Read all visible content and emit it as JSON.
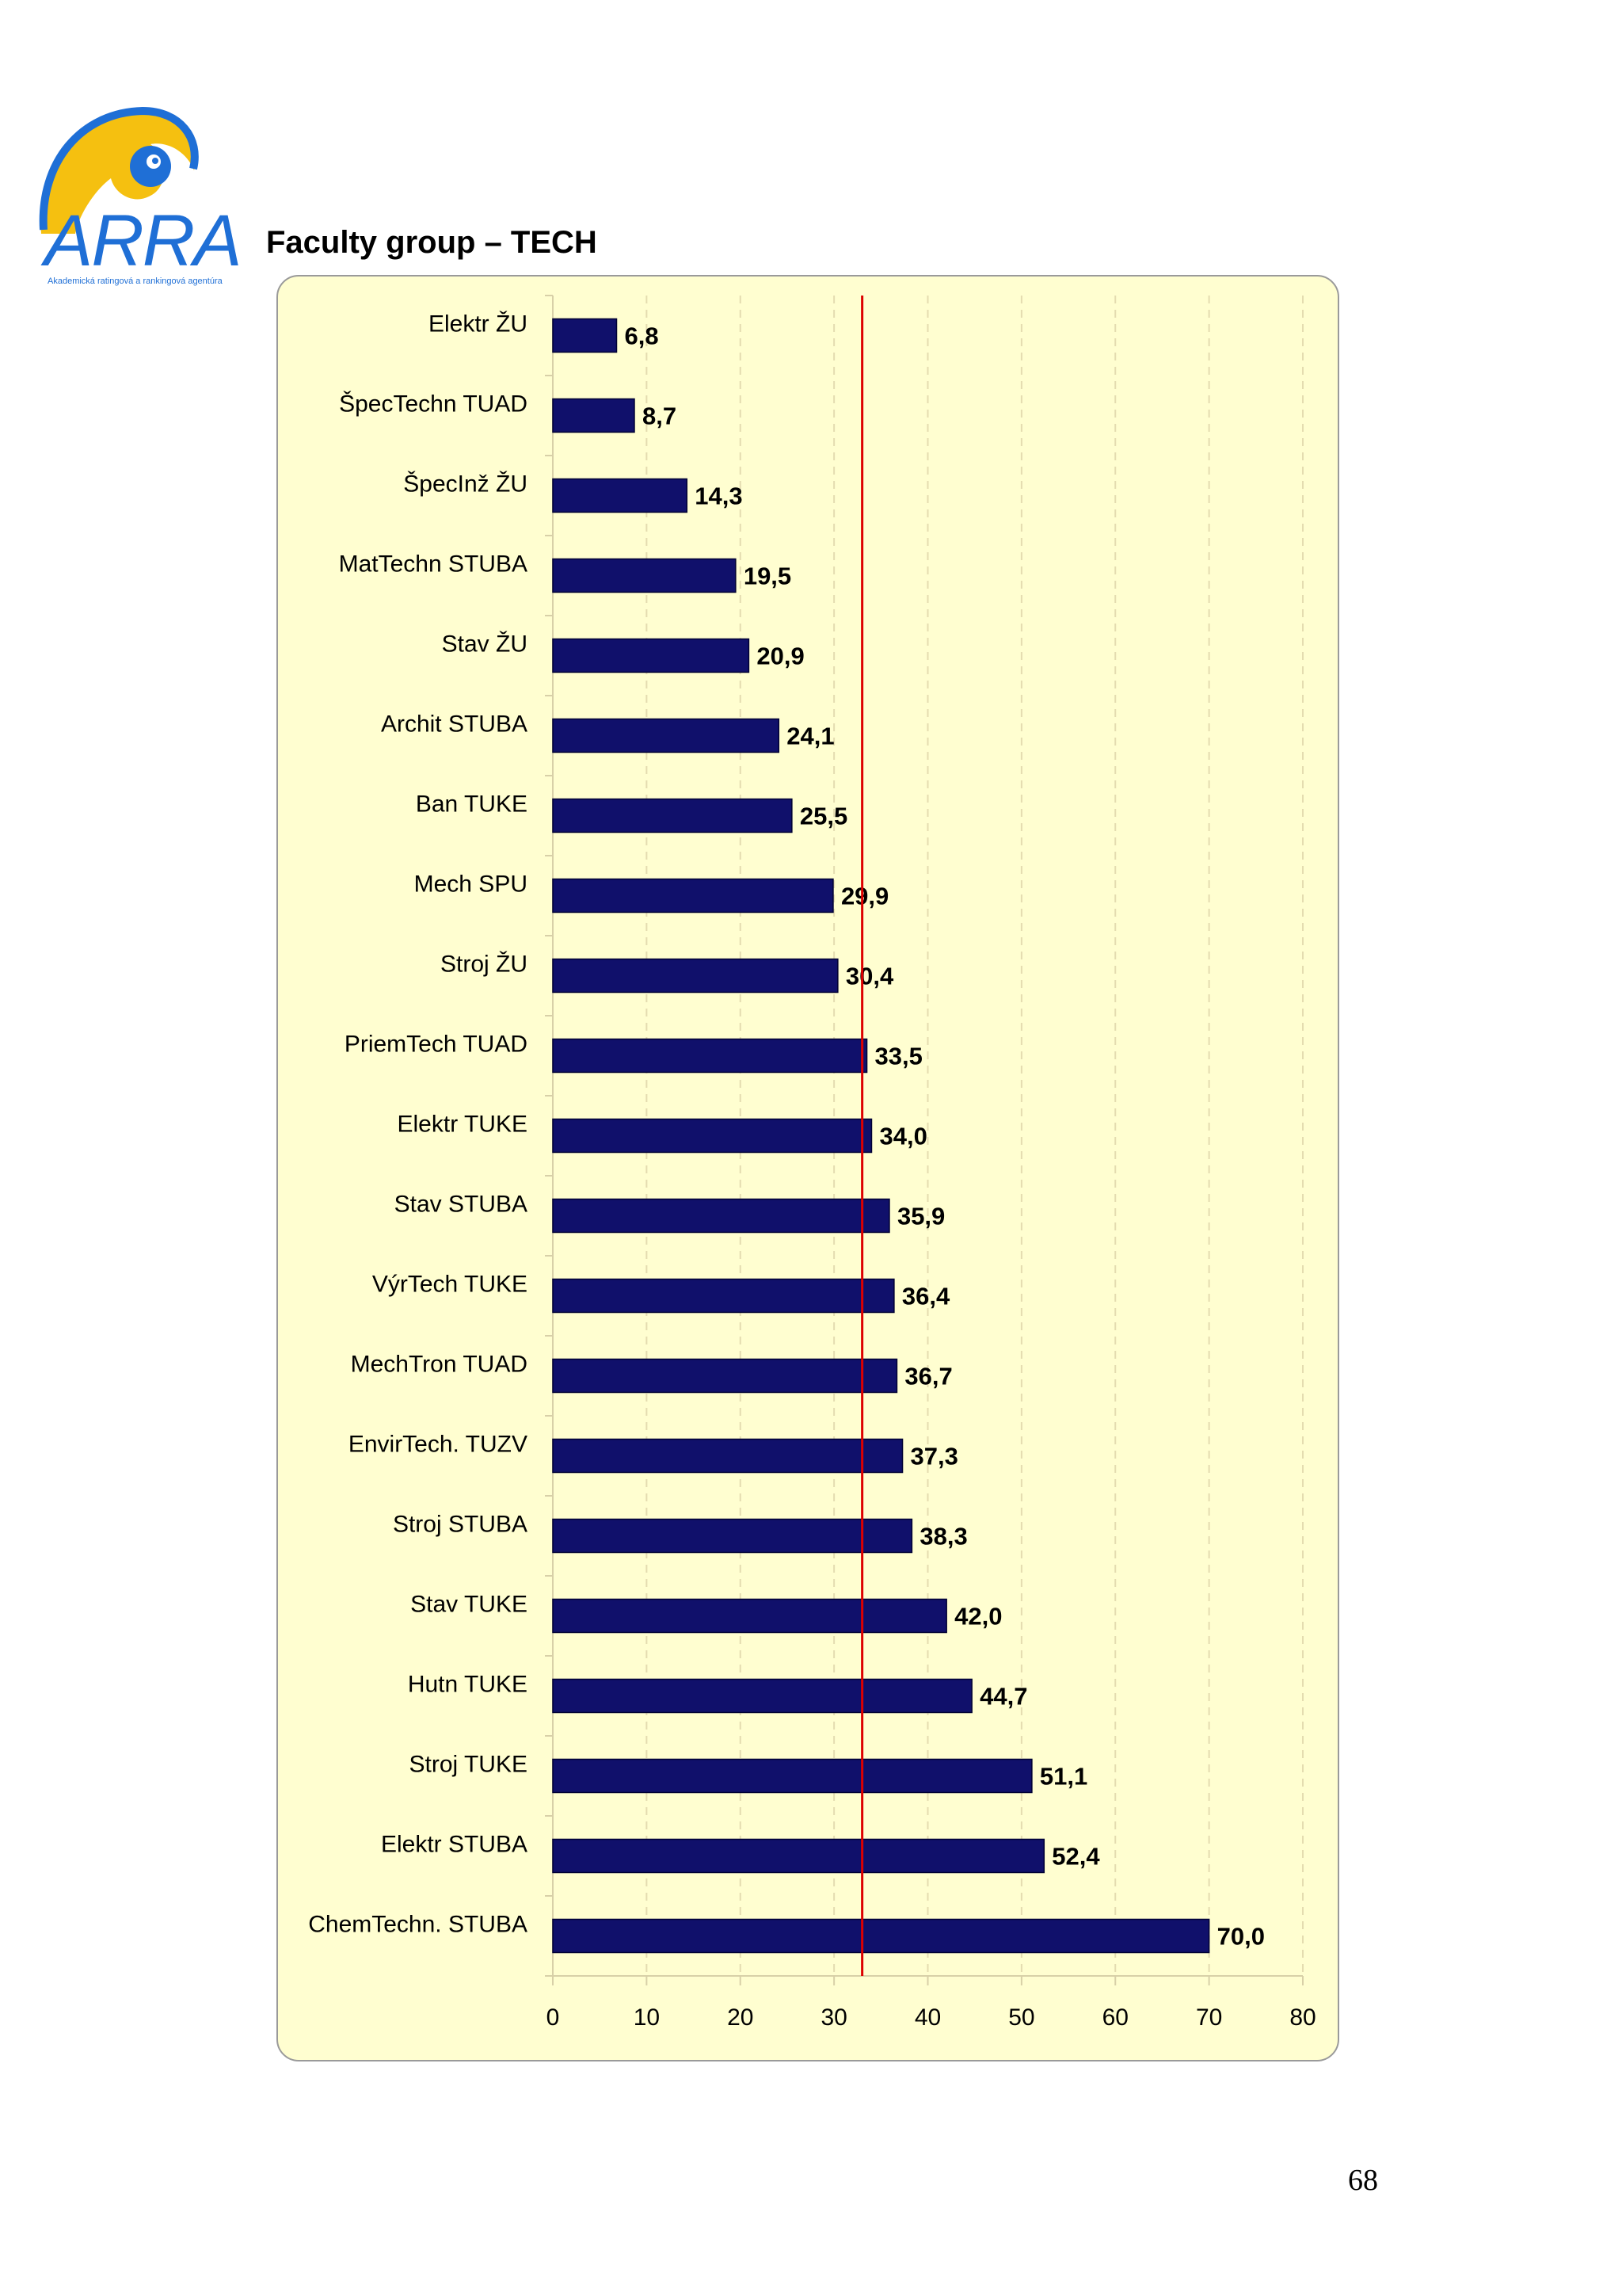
{
  "header": {
    "logo_text": "ARRA",
    "logo_subtitle": "Akademická ratingová a rankingová agentúra",
    "title": "Faculty group – TECH"
  },
  "colors": {
    "bar_fill": "#10106b",
    "reference_line": "#dd0000",
    "panel_background": "#fffed0",
    "logo_blue": "#1f6fd6",
    "logo_yellow": "#f5c010"
  },
  "chart_data": {
    "type": "bar",
    "orientation": "horizontal",
    "title": "Faculty group – TECH",
    "categories": [
      "Elektr ŽU",
      "ŠpecTechn TUAD",
      "ŠpecInž ŽU",
      "MatTechn STUBA",
      "Stav ŽU",
      "Archit STUBA",
      "Ban TUKE",
      "Mech SPU",
      "Stroj ŽU",
      "PriemTech TUAD",
      "Elektr TUKE",
      "Stav STUBA",
      "VýrTech TUKE",
      "MechTron TUAD",
      "EnvirTech. TUZV",
      "Stroj STUBA",
      "Stav TUKE",
      "Hutn TUKE",
      "Stroj TUKE",
      "Elektr STUBA",
      "ChemTechn. STUBA"
    ],
    "values": [
      6.8,
      8.7,
      14.3,
      19.5,
      20.9,
      24.1,
      25.5,
      29.9,
      30.4,
      33.5,
      34.0,
      35.9,
      36.4,
      36.7,
      37.3,
      38.3,
      42.0,
      44.7,
      51.1,
      52.4,
      70.0
    ],
    "value_labels": [
      "6,8",
      "8,7",
      "14,3",
      "19,5",
      "20,9",
      "24,1",
      "25,5",
      "29,9",
      "30,4",
      "33,5",
      "34,0",
      "35,9",
      "36,4",
      "36,7",
      "37,3",
      "38,3",
      "42,0",
      "44,7",
      "51,1",
      "52,4",
      "70,0"
    ],
    "xlim": [
      0,
      80
    ],
    "xticks": [
      0,
      10,
      20,
      30,
      40,
      50,
      60,
      70,
      80
    ],
    "xtick_labels": [
      "0",
      "10",
      "20",
      "30",
      "40",
      "50",
      "60",
      "70",
      "80"
    ],
    "reference_line": 33.0,
    "grid": "vertical dashed",
    "xlabel": "",
    "ylabel": ""
  },
  "footer": {
    "page_number": "68"
  }
}
